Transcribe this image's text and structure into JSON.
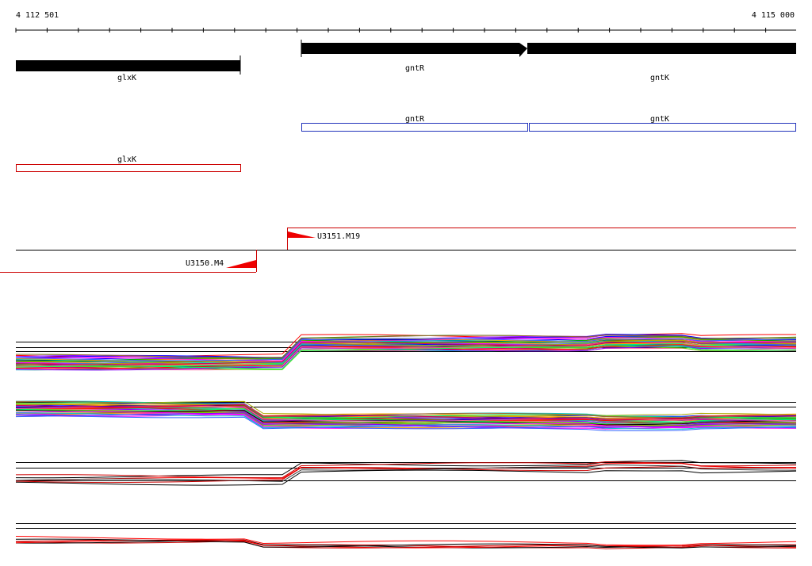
{
  "ruler": {
    "start": "4 112 501",
    "end": "4 115 000"
  },
  "genes": [
    {
      "label": "glxK"
    },
    {
      "label": "gntR"
    },
    {
      "label": "gntK"
    }
  ],
  "transcripts_blue": [
    {
      "label": "gntR"
    },
    {
      "label": "gntK"
    }
  ],
  "transcripts_red": [
    {
      "label": "glxK"
    }
  ],
  "reads": [
    {
      "label": "U3151.M19"
    },
    {
      "label": "U3150.M4"
    }
  ]
}
